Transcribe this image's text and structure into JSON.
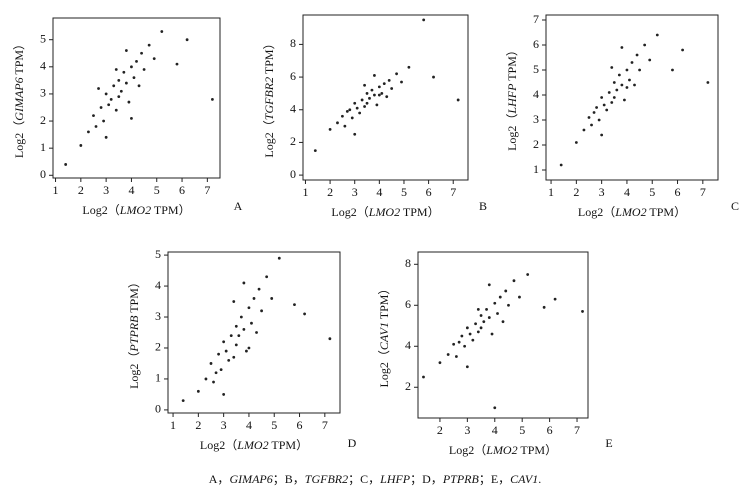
{
  "chart_data": [
    {
      "type": "scatter",
      "panel": "A",
      "color": "#222",
      "xlabel": [
        "Log2（",
        "LMO2",
        " TPM）"
      ],
      "ylabel": [
        "Log2（",
        "GIMAP6",
        " TPM）"
      ],
      "xlim": [
        0.9,
        7.5
      ],
      "ylim": [
        -0.1,
        5.8
      ],
      "xticks": [
        1,
        2,
        3,
        4,
        5,
        6,
        7
      ],
      "yticks": [
        0,
        1,
        2,
        3,
        4,
        5
      ],
      "x": [
        1.4,
        2.0,
        2.3,
        2.5,
        2.6,
        2.8,
        2.9,
        3.0,
        3.1,
        3.2,
        3.3,
        3.4,
        3.5,
        3.5,
        3.6,
        3.7,
        3.8,
        3.9,
        4.0,
        4.1,
        4.2,
        4.3,
        4.4,
        4.5,
        4.7,
        4.9,
        5.2,
        5.8,
        6.2,
        7.2,
        3.0,
        3.8,
        2.7,
        4.0,
        3.4
      ],
      "y": [
        0.4,
        1.1,
        1.6,
        2.2,
        1.8,
        2.5,
        2.0,
        3.0,
        2.6,
        2.8,
        3.3,
        2.4,
        3.5,
        2.9,
        3.1,
        3.8,
        3.4,
        2.7,
        4.0,
        3.6,
        4.2,
        3.3,
        4.5,
        3.9,
        4.8,
        4.3,
        5.3,
        4.1,
        5.0,
        2.8,
        1.4,
        4.6,
        3.2,
        2.1,
        3.9
      ]
    },
    {
      "type": "scatter",
      "panel": "B",
      "color": "#222",
      "xlabel": [
        "Log2（",
        "LMO2",
        " TPM）"
      ],
      "ylabel": [
        "Log2（",
        "TGFBR2",
        " TPM）"
      ],
      "xlim": [
        0.9,
        7.6
      ],
      "ylim": [
        -0.3,
        9.8
      ],
      "xticks": [
        1,
        2,
        3,
        4,
        5,
        6,
        7
      ],
      "yticks": [
        0,
        2,
        4,
        6,
        8
      ],
      "x": [
        1.4,
        2.0,
        2.3,
        2.5,
        2.6,
        2.8,
        2.9,
        3.0,
        3.1,
        3.2,
        3.3,
        3.4,
        3.5,
        3.5,
        3.6,
        3.7,
        3.8,
        3.9,
        4.0,
        4.1,
        4.2,
        4.3,
        4.4,
        4.5,
        4.7,
        4.9,
        5.2,
        5.8,
        6.2,
        7.2,
        3.0,
        3.8,
        2.7,
        4.0,
        3.4
      ],
      "y": [
        1.5,
        2.8,
        3.2,
        3.6,
        3.0,
        4.0,
        3.5,
        4.4,
        4.1,
        3.8,
        4.6,
        4.2,
        5.0,
        4.4,
        4.7,
        5.2,
        4.9,
        4.3,
        5.4,
        5.0,
        5.6,
        4.8,
        5.8,
        5.3,
        6.2,
        5.7,
        6.6,
        9.5,
        6.0,
        4.6,
        2.5,
        6.1,
        3.9,
        4.9,
        5.5
      ]
    },
    {
      "type": "scatter",
      "panel": "C",
      "color": "#222",
      "xlabel": [
        "Log2（",
        "LMO2",
        " TPM）"
      ],
      "ylabel": [
        "Log2（",
        "LHFP",
        " TPM）"
      ],
      "xlim": [
        0.8,
        7.6
      ],
      "ylim": [
        0.6,
        7.2
      ],
      "xticks": [
        1,
        2,
        3,
        4,
        5,
        6,
        7
      ],
      "yticks": [
        1,
        2,
        3,
        4,
        5,
        6,
        7
      ],
      "x": [
        1.4,
        2.0,
        2.3,
        2.5,
        2.6,
        2.8,
        2.9,
        3.0,
        3.1,
        3.2,
        3.3,
        3.4,
        3.5,
        3.5,
        3.6,
        3.7,
        3.8,
        3.9,
        4.0,
        4.1,
        4.2,
        4.3,
        4.4,
        4.5,
        4.7,
        4.9,
        5.2,
        5.8,
        6.2,
        7.2,
        3.0,
        3.8,
        2.7,
        4.0,
        3.4
      ],
      "y": [
        1.2,
        2.1,
        2.6,
        3.1,
        2.8,
        3.5,
        3.0,
        3.9,
        3.6,
        3.4,
        4.1,
        3.7,
        4.5,
        3.9,
        4.2,
        4.8,
        4.4,
        3.8,
        5.0,
        4.6,
        5.3,
        4.4,
        5.6,
        5.0,
        6.0,
        5.4,
        6.4,
        5.0,
        5.8,
        4.5,
        2.4,
        5.9,
        3.3,
        4.3,
        5.1
      ]
    },
    {
      "type": "scatter",
      "panel": "D",
      "color": "#222",
      "xlabel": [
        "Log2（",
        "LMO2",
        " TPM）"
      ],
      "ylabel": [
        "Log2（",
        "PTPRB",
        " TPM）"
      ],
      "xlim": [
        0.8,
        7.6
      ],
      "ylim": [
        -0.1,
        5.1
      ],
      "xticks": [
        1,
        2,
        3,
        4,
        5,
        6,
        7
      ],
      "yticks": [
        0,
        1,
        2,
        3,
        4,
        5
      ],
      "x": [
        1.4,
        2.0,
        2.3,
        2.5,
        2.6,
        2.8,
        2.9,
        3.0,
        3.1,
        3.2,
        3.3,
        3.4,
        3.5,
        3.5,
        3.6,
        3.7,
        3.8,
        3.9,
        4.0,
        4.1,
        4.2,
        4.3,
        4.4,
        4.5,
        4.7,
        4.9,
        5.2,
        5.8,
        6.2,
        7.2,
        3.0,
        3.8,
        2.7,
        4.0,
        3.4
      ],
      "y": [
        0.3,
        0.6,
        1.0,
        1.5,
        0.9,
        1.8,
        1.3,
        2.2,
        1.9,
        1.6,
        2.4,
        1.7,
        2.7,
        2.1,
        2.4,
        3.0,
        2.6,
        1.9,
        3.3,
        2.8,
        3.6,
        2.5,
        3.9,
        3.2,
        4.3,
        3.6,
        4.9,
        3.4,
        3.1,
        2.3,
        0.5,
        4.1,
        1.2,
        2.0,
        3.5
      ]
    },
    {
      "type": "scatter",
      "panel": "E",
      "color": "#222",
      "xlabel": [
        "Log2（",
        "LMO2",
        " TPM）"
      ],
      "ylabel": [
        "Log2（",
        "CAV1",
        " TPM）"
      ],
      "xlim": [
        1.2,
        7.4
      ],
      "ylim": [
        0.5,
        8.6
      ],
      "xticks": [
        2,
        3,
        4,
        5,
        6,
        7
      ],
      "yticks": [
        2,
        4,
        6,
        8
      ],
      "x": [
        1.4,
        2.0,
        2.3,
        2.5,
        2.6,
        2.8,
        2.9,
        3.0,
        3.1,
        3.2,
        3.3,
        3.4,
        3.5,
        3.5,
        3.6,
        3.7,
        3.8,
        3.9,
        4.0,
        4.1,
        4.2,
        4.3,
        4.4,
        4.5,
        4.7,
        4.9,
        5.2,
        5.8,
        6.2,
        7.2,
        3.0,
        3.8,
        2.7,
        4.0,
        3.4
      ],
      "y": [
        2.5,
        3.2,
        3.6,
        4.1,
        3.5,
        4.5,
        4.0,
        4.9,
        4.6,
        4.3,
        5.1,
        4.7,
        5.5,
        4.9,
        5.2,
        5.8,
        5.4,
        4.6,
        6.1,
        5.6,
        6.4,
        5.2,
        6.7,
        6.0,
        7.2,
        6.4,
        7.5,
        5.9,
        6.3,
        5.7,
        3.0,
        7.0,
        4.2,
        1.0,
        5.8
      ]
    }
  ],
  "caption": [
    "A，",
    "GIMAP6",
    "；B，",
    "TGFBR2",
    "；C，",
    "LHFP",
    "；D，",
    "PTPRB",
    "；E，",
    "CAV1",
    "."
  ]
}
